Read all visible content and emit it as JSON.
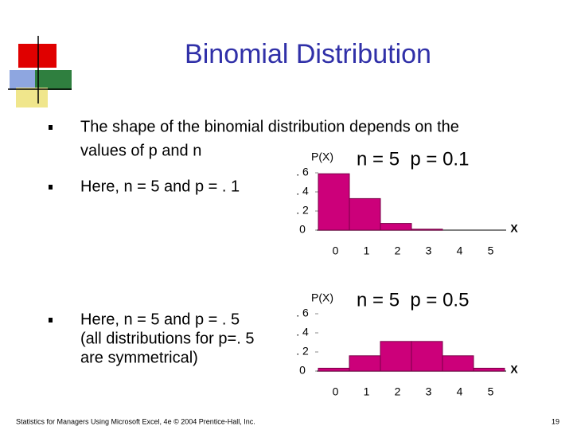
{
  "title": "Binomial Distribution",
  "bullets": [
    {
      "lines": [
        "The shape of the binomial distribution depends on the",
        "values of p and n"
      ]
    },
    {
      "lines": [
        "Here, n = 5 and p = . 1"
      ]
    },
    {
      "lines": [
        "Here, n = 5 and p = . 5",
        "(all distributions for p=. 5",
        "are symmetrical)"
      ]
    }
  ],
  "footer": "Statistics for Managers Using Microsoft Excel, 4e © 2004 Prentice-Hall, Inc.",
  "page_number": "19",
  "chart_data": [
    {
      "type": "bar",
      "title": "n = 5  p = 0.1",
      "y_label": "P(X)",
      "x_label": "X",
      "categories": [
        "0",
        "1",
        "2",
        "3",
        "4",
        "5"
      ],
      "values": [
        0.59,
        0.33,
        0.07,
        0.01,
        0,
        0
      ],
      "color": "#cc007a",
      "ylim": [
        0,
        0.7
      ],
      "yticks": [
        {
          "value": 0.6,
          "label": ". 6"
        },
        {
          "value": 0.4,
          "label": ". 4"
        },
        {
          "value": 0.2,
          "label": ". 2"
        },
        0
      ],
      "grid": false
    },
    {
      "type": "bar",
      "title": "n = 5  p = 0.5",
      "y_label": "P(X)",
      "x_label": "X",
      "categories": [
        "0",
        "1",
        "2",
        "3",
        "4",
        "5"
      ],
      "values": [
        0.03,
        0.16,
        0.31,
        0.31,
        0.16,
        0.03
      ],
      "color": "#cc007a",
      "ylim": [
        0,
        0.7
      ],
      "yticks": [
        {
          "value": 0.6,
          "label": ". 6"
        },
        {
          "value": 0.4,
          "label": ". 4"
        },
        {
          "value": 0.2,
          "label": ". 2"
        },
        0
      ],
      "grid": false
    }
  ]
}
